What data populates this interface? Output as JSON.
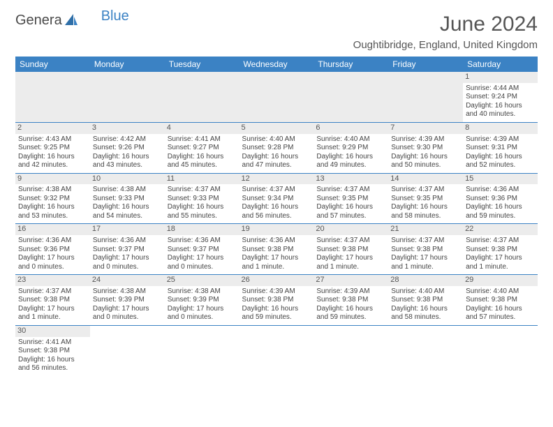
{
  "logo": {
    "part1": "Genera",
    "part2": "Blue"
  },
  "title": "June 2024",
  "location": "Oughtibridge, England, United Kingdom",
  "colors": {
    "header_bg": "#3b82c4",
    "header_text": "#ffffff",
    "daynum_bg": "#ececec",
    "border": "#3b82c4",
    "text": "#444444",
    "title_text": "#555555"
  },
  "weekdays": [
    "Sunday",
    "Monday",
    "Tuesday",
    "Wednesday",
    "Thursday",
    "Friday",
    "Saturday"
  ],
  "weeks": [
    [
      null,
      null,
      null,
      null,
      null,
      null,
      {
        "n": "1",
        "sr": "Sunrise: 4:44 AM",
        "ss": "Sunset: 9:24 PM",
        "dl": "Daylight: 16 hours and 40 minutes."
      }
    ],
    [
      {
        "n": "2",
        "sr": "Sunrise: 4:43 AM",
        "ss": "Sunset: 9:25 PM",
        "dl": "Daylight: 16 hours and 42 minutes."
      },
      {
        "n": "3",
        "sr": "Sunrise: 4:42 AM",
        "ss": "Sunset: 9:26 PM",
        "dl": "Daylight: 16 hours and 43 minutes."
      },
      {
        "n": "4",
        "sr": "Sunrise: 4:41 AM",
        "ss": "Sunset: 9:27 PM",
        "dl": "Daylight: 16 hours and 45 minutes."
      },
      {
        "n": "5",
        "sr": "Sunrise: 4:40 AM",
        "ss": "Sunset: 9:28 PM",
        "dl": "Daylight: 16 hours and 47 minutes."
      },
      {
        "n": "6",
        "sr": "Sunrise: 4:40 AM",
        "ss": "Sunset: 9:29 PM",
        "dl": "Daylight: 16 hours and 49 minutes."
      },
      {
        "n": "7",
        "sr": "Sunrise: 4:39 AM",
        "ss": "Sunset: 9:30 PM",
        "dl": "Daylight: 16 hours and 50 minutes."
      },
      {
        "n": "8",
        "sr": "Sunrise: 4:39 AM",
        "ss": "Sunset: 9:31 PM",
        "dl": "Daylight: 16 hours and 52 minutes."
      }
    ],
    [
      {
        "n": "9",
        "sr": "Sunrise: 4:38 AM",
        "ss": "Sunset: 9:32 PM",
        "dl": "Daylight: 16 hours and 53 minutes."
      },
      {
        "n": "10",
        "sr": "Sunrise: 4:38 AM",
        "ss": "Sunset: 9:33 PM",
        "dl": "Daylight: 16 hours and 54 minutes."
      },
      {
        "n": "11",
        "sr": "Sunrise: 4:37 AM",
        "ss": "Sunset: 9:33 PM",
        "dl": "Daylight: 16 hours and 55 minutes."
      },
      {
        "n": "12",
        "sr": "Sunrise: 4:37 AM",
        "ss": "Sunset: 9:34 PM",
        "dl": "Daylight: 16 hours and 56 minutes."
      },
      {
        "n": "13",
        "sr": "Sunrise: 4:37 AM",
        "ss": "Sunset: 9:35 PM",
        "dl": "Daylight: 16 hours and 57 minutes."
      },
      {
        "n": "14",
        "sr": "Sunrise: 4:37 AM",
        "ss": "Sunset: 9:35 PM",
        "dl": "Daylight: 16 hours and 58 minutes."
      },
      {
        "n": "15",
        "sr": "Sunrise: 4:36 AM",
        "ss": "Sunset: 9:36 PM",
        "dl": "Daylight: 16 hours and 59 minutes."
      }
    ],
    [
      {
        "n": "16",
        "sr": "Sunrise: 4:36 AM",
        "ss": "Sunset: 9:36 PM",
        "dl": "Daylight: 17 hours and 0 minutes."
      },
      {
        "n": "17",
        "sr": "Sunrise: 4:36 AM",
        "ss": "Sunset: 9:37 PM",
        "dl": "Daylight: 17 hours and 0 minutes."
      },
      {
        "n": "18",
        "sr": "Sunrise: 4:36 AM",
        "ss": "Sunset: 9:37 PM",
        "dl": "Daylight: 17 hours and 0 minutes."
      },
      {
        "n": "19",
        "sr": "Sunrise: 4:36 AM",
        "ss": "Sunset: 9:38 PM",
        "dl": "Daylight: 17 hours and 1 minute."
      },
      {
        "n": "20",
        "sr": "Sunrise: 4:37 AM",
        "ss": "Sunset: 9:38 PM",
        "dl": "Daylight: 17 hours and 1 minute."
      },
      {
        "n": "21",
        "sr": "Sunrise: 4:37 AM",
        "ss": "Sunset: 9:38 PM",
        "dl": "Daylight: 17 hours and 1 minute."
      },
      {
        "n": "22",
        "sr": "Sunrise: 4:37 AM",
        "ss": "Sunset: 9:38 PM",
        "dl": "Daylight: 17 hours and 1 minute."
      }
    ],
    [
      {
        "n": "23",
        "sr": "Sunrise: 4:37 AM",
        "ss": "Sunset: 9:38 PM",
        "dl": "Daylight: 17 hours and 1 minute."
      },
      {
        "n": "24",
        "sr": "Sunrise: 4:38 AM",
        "ss": "Sunset: 9:39 PM",
        "dl": "Daylight: 17 hours and 0 minutes."
      },
      {
        "n": "25",
        "sr": "Sunrise: 4:38 AM",
        "ss": "Sunset: 9:39 PM",
        "dl": "Daylight: 17 hours and 0 minutes."
      },
      {
        "n": "26",
        "sr": "Sunrise: 4:39 AM",
        "ss": "Sunset: 9:38 PM",
        "dl": "Daylight: 16 hours and 59 minutes."
      },
      {
        "n": "27",
        "sr": "Sunrise: 4:39 AM",
        "ss": "Sunset: 9:38 PM",
        "dl": "Daylight: 16 hours and 59 minutes."
      },
      {
        "n": "28",
        "sr": "Sunrise: 4:40 AM",
        "ss": "Sunset: 9:38 PM",
        "dl": "Daylight: 16 hours and 58 minutes."
      },
      {
        "n": "29",
        "sr": "Sunrise: 4:40 AM",
        "ss": "Sunset: 9:38 PM",
        "dl": "Daylight: 16 hours and 57 minutes."
      }
    ],
    [
      {
        "n": "30",
        "sr": "Sunrise: 4:41 AM",
        "ss": "Sunset: 9:38 PM",
        "dl": "Daylight: 16 hours and 56 minutes."
      },
      null,
      null,
      null,
      null,
      null,
      null
    ]
  ]
}
